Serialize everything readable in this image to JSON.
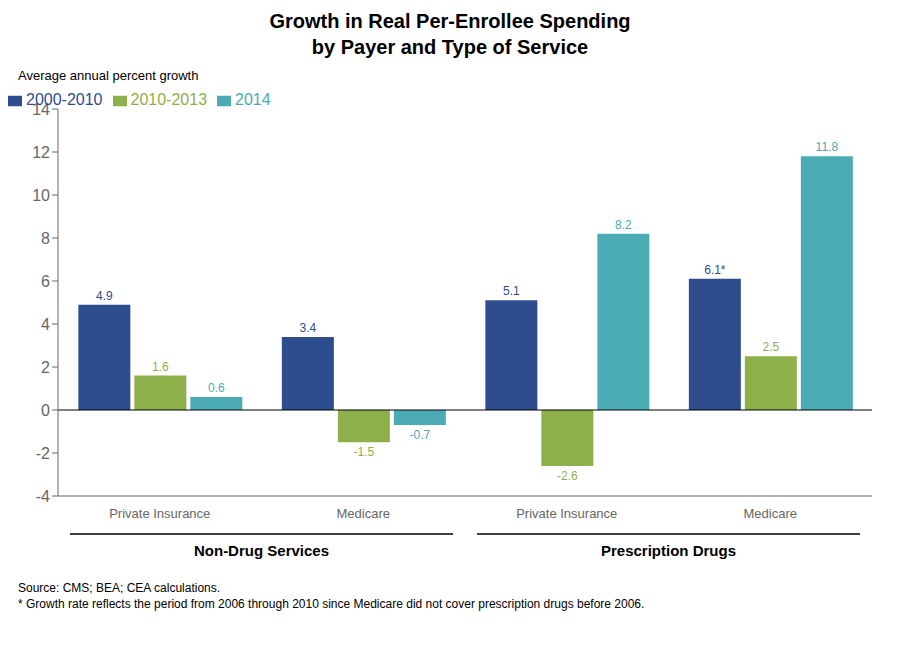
{
  "chart_data": {
    "type": "bar",
    "title": "Growth in Real Per-Enrollee Spending",
    "subtitle": "by Payer and Type of Service",
    "y_label": "Average annual percent growth",
    "categories": [
      "Private Insurance",
      "Medicare",
      "Private Insurance",
      "Medicare"
    ],
    "category_groups": [
      "Non-Drug Services",
      "Non-Drug Services",
      "Prescription Drugs",
      "Prescription Drugs"
    ],
    "series": [
      {
        "name": "2000-2010",
        "color": "#2E4D8E",
        "values": [
          4.9,
          3.4,
          5.1,
          6.1
        ],
        "value_labels": [
          "4.9",
          "3.4",
          "5.1",
          "6.1*"
        ]
      },
      {
        "name": "2010-2013",
        "color": "#8DB04A",
        "values": [
          1.6,
          -1.5,
          -2.6,
          2.5
        ]
      },
      {
        "name": "2014",
        "color": "#4AABB5",
        "values": [
          0.6,
          -0.7,
          8.2,
          11.8
        ]
      }
    ],
    "ylim": [
      -4,
      14
    ],
    "yticks": [
      -4,
      -2,
      0,
      2,
      4,
      6,
      8,
      10,
      12,
      14
    ],
    "grid": false,
    "legend": "upper left",
    "data_labels": true,
    "annotations": [
      "Source: CMS; BEA; CEA calculations.",
      "* Growth rate reflects the period from 2006 through 2010 since Medicare did not cover prescription drugs before 2006."
    ]
  }
}
